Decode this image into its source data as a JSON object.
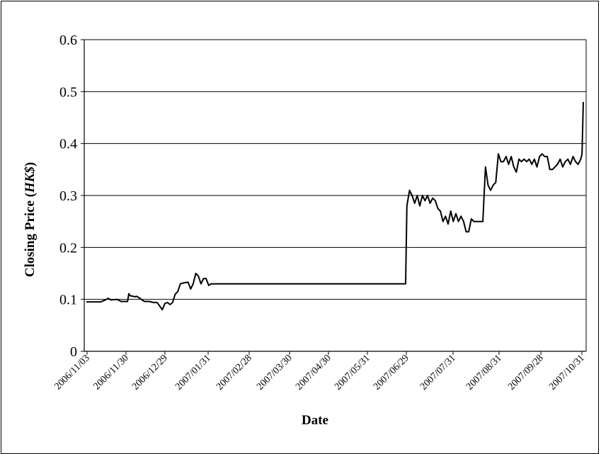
{
  "chart_data": {
    "type": "line",
    "title": "",
    "xlabel": "Date",
    "ylabel_prefix": "Closing Price (",
    "ylabel_unit": "HK$",
    "ylabel_suffix": ")",
    "ylim": [
      0,
      0.6
    ],
    "yticks": [
      "0",
      "0.1",
      "0.2",
      "0.3",
      "0.4",
      "0.5",
      "0.6"
    ],
    "grid": "horizontal",
    "line_color": "#000000",
    "x_tick_labels": [
      "2006/11/03",
      "2006/11/30",
      "2006/12/29",
      "2007/01/31",
      "2007/02/28",
      "2007/03/30",
      "2007/04/30",
      "2007/05/31",
      "2007/06/29",
      "2007/07/31",
      "2007/08/31",
      "2007/09/28",
      "2007/10/31"
    ],
    "series": [
      {
        "points": [
          [
            "2006/11/03",
            0.095
          ],
          [
            "2006/11/08",
            0.095
          ],
          [
            "2006/11/14",
            0.095
          ],
          [
            "2006/11/17",
            0.098
          ],
          [
            "2006/11/20",
            0.102
          ],
          [
            "2006/11/22",
            0.099
          ],
          [
            "2006/11/27",
            0.1
          ],
          [
            "2006/11/30",
            0.096
          ],
          [
            "2006/12/05",
            0.096
          ],
          [
            "2006/12/06",
            0.111
          ],
          [
            "2006/12/07",
            0.107
          ],
          [
            "2006/12/11",
            0.105
          ],
          [
            "2006/12/12",
            0.106
          ],
          [
            "2006/12/14",
            0.103
          ],
          [
            "2006/12/18",
            0.096
          ],
          [
            "2006/12/22",
            0.096
          ],
          [
            "2006/12/25",
            0.094
          ],
          [
            "2006/12/28",
            0.094
          ],
          [
            "2007/01/01",
            0.08
          ],
          [
            "2007/01/03",
            0.092
          ],
          [
            "2007/01/05",
            0.094
          ],
          [
            "2007/01/07",
            0.09
          ],
          [
            "2007/01/09",
            0.094
          ],
          [
            "2007/01/11",
            0.11
          ],
          [
            "2007/01/13",
            0.115
          ],
          [
            "2007/01/15",
            0.13
          ],
          [
            "2007/01/18",
            0.132
          ],
          [
            "2007/01/21",
            0.133
          ],
          [
            "2007/01/23",
            0.12
          ],
          [
            "2007/01/25",
            0.13
          ],
          [
            "2007/01/27",
            0.15
          ],
          [
            "2007/01/29",
            0.145
          ],
          [
            "2007/01/31",
            0.13
          ],
          [
            "2007/02/02",
            0.14
          ],
          [
            "2007/02/04",
            0.14
          ],
          [
            "2007/02/06",
            0.127
          ],
          [
            "2007/02/08",
            0.13
          ],
          [
            "2007/03/30",
            0.13
          ],
          [
            "2007/05/31",
            0.13
          ],
          [
            "2007/07/09",
            0.13
          ],
          [
            "2007/07/10",
            0.28
          ],
          [
            "2007/07/12",
            0.31
          ],
          [
            "2007/07/14",
            0.3
          ],
          [
            "2007/07/16",
            0.285
          ],
          [
            "2007/07/18",
            0.3
          ],
          [
            "2007/07/20",
            0.28
          ],
          [
            "2007/07/22",
            0.3
          ],
          [
            "2007/07/24",
            0.29
          ],
          [
            "2007/07/26",
            0.3
          ],
          [
            "2007/07/28",
            0.285
          ],
          [
            "2007/07/30",
            0.295
          ],
          [
            "2007/08/01",
            0.29
          ],
          [
            "2007/08/03",
            0.275
          ],
          [
            "2007/08/05",
            0.27
          ],
          [
            "2007/08/07",
            0.25
          ],
          [
            "2007/08/09",
            0.26
          ],
          [
            "2007/08/11",
            0.245
          ],
          [
            "2007/08/13",
            0.27
          ],
          [
            "2007/08/15",
            0.25
          ],
          [
            "2007/08/17",
            0.265
          ],
          [
            "2007/08/19",
            0.25
          ],
          [
            "2007/08/21",
            0.26
          ],
          [
            "2007/08/23",
            0.25
          ],
          [
            "2007/08/25",
            0.23
          ],
          [
            "2007/08/27",
            0.23
          ],
          [
            "2007/08/29",
            0.255
          ],
          [
            "2007/08/31",
            0.25
          ],
          [
            "2007/09/04",
            0.25
          ],
          [
            "2007/09/07",
            0.25
          ],
          [
            "2007/09/09",
            0.355
          ],
          [
            "2007/09/11",
            0.32
          ],
          [
            "2007/09/13",
            0.31
          ],
          [
            "2007/09/15",
            0.32
          ],
          [
            "2007/09/17",
            0.325
          ],
          [
            "2007/09/19",
            0.38
          ],
          [
            "2007/09/21",
            0.365
          ],
          [
            "2007/09/23",
            0.365
          ],
          [
            "2007/09/25",
            0.375
          ],
          [
            "2007/09/27",
            0.36
          ],
          [
            "2007/09/29",
            0.375
          ],
          [
            "2007/10/01",
            0.355
          ],
          [
            "2007/10/03",
            0.345
          ],
          [
            "2007/10/05",
            0.37
          ],
          [
            "2007/10/07",
            0.365
          ],
          [
            "2007/10/09",
            0.37
          ],
          [
            "2007/10/11",
            0.365
          ],
          [
            "2007/10/13",
            0.37
          ],
          [
            "2007/10/15",
            0.36
          ],
          [
            "2007/10/17",
            0.37
          ],
          [
            "2007/10/19",
            0.355
          ],
          [
            "2007/10/21",
            0.375
          ],
          [
            "2007/10/23",
            0.38
          ],
          [
            "2007/10/25",
            0.375
          ],
          [
            "2007/10/27",
            0.375
          ],
          [
            "2007/10/29",
            0.35
          ],
          [
            "2007/10/31",
            0.35
          ],
          [
            "2007/11/02",
            0.355
          ],
          [
            "2007/11/04",
            0.36
          ],
          [
            "2007/11/06",
            0.37
          ],
          [
            "2007/11/08",
            0.355
          ],
          [
            "2007/11/10",
            0.365
          ],
          [
            "2007/11/12",
            0.37
          ],
          [
            "2007/11/14",
            0.36
          ],
          [
            "2007/11/16",
            0.375
          ],
          [
            "2007/11/18",
            0.365
          ],
          [
            "2007/11/20",
            0.36
          ],
          [
            "2007/11/22",
            0.37
          ],
          [
            "2007/11/23",
            0.38
          ],
          [
            "2007/11/24",
            0.48
          ]
        ]
      }
    ]
  }
}
